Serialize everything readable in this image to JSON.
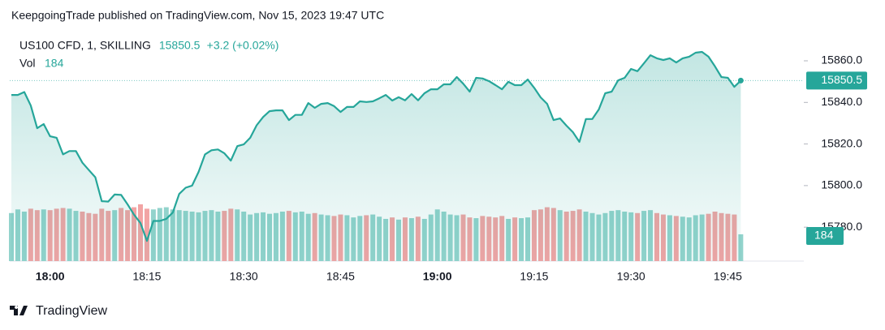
{
  "header": {
    "title": "KeepgoingTrade published on TradingView.com, Nov 15, 2023 19:47 UTC"
  },
  "footer": {
    "brand": "TradingView"
  },
  "chart_data": {
    "type": "area",
    "change": "+3.2 (+0.02%)",
    "categories": [
      null,
      null,
      null,
      null,
      null,
      null,
      "18:00",
      null,
      null,
      null,
      null,
      null,
      null,
      null,
      null,
      null,
      null,
      null,
      null,
      null,
      null,
      "18:15",
      null,
      null,
      null,
      null,
      null,
      null,
      null,
      null,
      null,
      null,
      null,
      null,
      null,
      null,
      "18:30",
      null,
      null,
      null,
      null,
      null,
      null,
      null,
      null,
      null,
      null,
      null,
      null,
      null,
      null,
      "18:45",
      null,
      null,
      null,
      null,
      null,
      null,
      null,
      null,
      null,
      null,
      null,
      null,
      null,
      null,
      "19:00",
      null,
      null,
      null,
      null,
      null,
      null,
      null,
      null,
      null,
      null,
      null,
      null,
      null,
      null,
      "19:15",
      null,
      null,
      null,
      null,
      null,
      null,
      null,
      null,
      null,
      null,
      null,
      null,
      null,
      null,
      "19:30",
      null,
      null,
      null,
      null,
      null,
      null,
      null,
      null,
      null,
      null,
      null,
      null,
      null,
      null,
      "19:45",
      null,
      null
    ],
    "series": [
      {
        "name": "US100 CFD, 1, SKILLING",
        "color": "#26a69a",
        "values": [
          15843.6,
          15843.6,
          15845,
          15838.5,
          15827.6,
          15829.6,
          15823.7,
          15823,
          15815,
          15816.6,
          15816.6,
          15811,
          15807.5,
          15804,
          15792.5,
          15792.3,
          15795.7,
          15795.5,
          15791,
          15786,
          15782,
          15773.4,
          15783,
          15783,
          15784,
          15787,
          15796,
          15799,
          15800,
          15806.6,
          15815,
          15817,
          15817.4,
          15815.5,
          15812,
          15819,
          15819.8,
          15823,
          15829,
          15833,
          15835.8,
          15836.2,
          15836.2,
          15831.5,
          15834,
          15834,
          15839.7,
          15837.4,
          15839.3,
          15839.7,
          15838.2,
          15835.4,
          15837.8,
          15837.8,
          15840.5,
          15840.2,
          15840.5,
          15842,
          15843.6,
          15840.9,
          15842.5,
          15841,
          15844,
          15841,
          15844.4,
          15846.3,
          15846.3,
          15848.7,
          15848.7,
          15852.2,
          15849,
          15845.2,
          15851.8,
          15851.5,
          15850.2,
          15848.3,
          15846.3,
          15849.9,
          15848.3,
          15848.3,
          15851,
          15847,
          15842.4,
          15839.3,
          15831.5,
          15832.3,
          15828.8,
          15825.7,
          15821,
          15832,
          15832,
          15836.6,
          15844.4,
          15845.2,
          15850.6,
          15851.8,
          15856.1,
          15855,
          15858.8,
          15862.7,
          15861.2,
          15860.4,
          15861.2,
          15859.2,
          15861.2,
          15862,
          15863.9,
          15864.3,
          15862,
          15857.3,
          15852.2,
          15851.8,
          15847.5,
          15850.5
        ]
      }
    ],
    "volume": {
      "name": "Vol",
      "up_color": "#92d3cc",
      "down_color": "#f2a4a4",
      "values": [
        330,
        355,
        340,
        360,
        350,
        355,
        350,
        360,
        365,
        360,
        345,
        340,
        330,
        325,
        360,
        345,
        350,
        365,
        350,
        370,
        390,
        360,
        355,
        365,
        370,
        355,
        350,
        345,
        340,
        335,
        345,
        350,
        340,
        345,
        360,
        355,
        340,
        320,
        330,
        335,
        325,
        330,
        340,
        345,
        335,
        340,
        325,
        330,
        320,
        315,
        310,
        320,
        315,
        300,
        310,
        315,
        320,
        305,
        290,
        300,
        285,
        300,
        295,
        305,
        290,
        320,
        355,
        340,
        320,
        315,
        320,
        300,
        295,
        310,
        305,
        300,
        310,
        290,
        300,
        295,
        300,
        350,
        355,
        370,
        365,
        350,
        340,
        345,
        355,
        340,
        330,
        320,
        330,
        345,
        350,
        340,
        335,
        330,
        345,
        350,
        330,
        320,
        315,
        310,
        305,
        300,
        315,
        320,
        325,
        340,
        330,
        325,
        320,
        184
      ]
    },
    "ylim": [
      15763.7,
      15871.7
    ],
    "yticks": [
      {
        "value": 15780,
        "label": "15780.0"
      },
      {
        "value": 15800,
        "label": "15800.0"
      },
      {
        "value": 15820,
        "label": "15820.0"
      },
      {
        "value": 15840,
        "label": "15840.0"
      },
      {
        "value": 15860,
        "label": "15860.0"
      }
    ]
  }
}
